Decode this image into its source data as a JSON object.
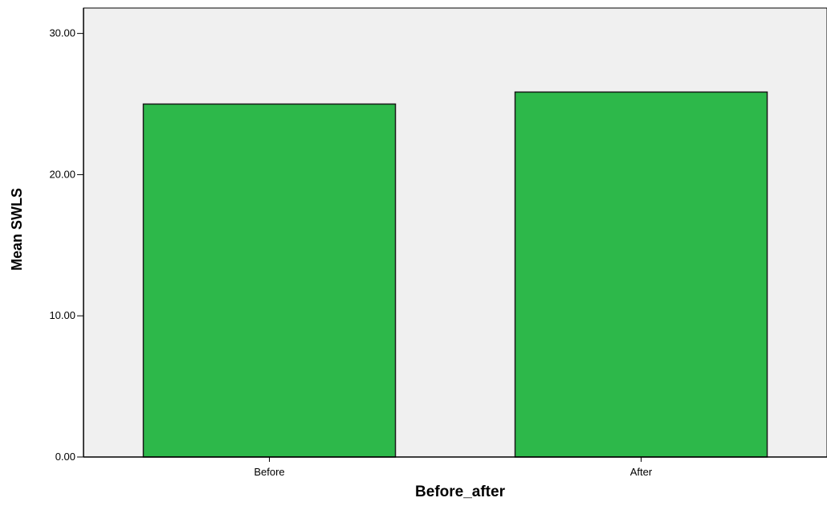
{
  "chart_data": {
    "type": "bar",
    "categories": [
      "Before",
      "After"
    ],
    "values": [
      25.0,
      25.85
    ],
    "xlabel": "Before_after",
    "ylabel": "Mean SWLS",
    "ylim": [
      0,
      31.8
    ],
    "yticks": [
      0,
      10,
      20,
      30
    ],
    "ytick_labels": [
      "0.00",
      "10.00",
      "20.00",
      "30.00"
    ],
    "grid": false,
    "legend": "none"
  },
  "colors": {
    "bar_fill": "#2db84a",
    "bar_stroke": "#1a1a1a",
    "plot_background": "#f0f0f0",
    "axis": "#000000"
  }
}
